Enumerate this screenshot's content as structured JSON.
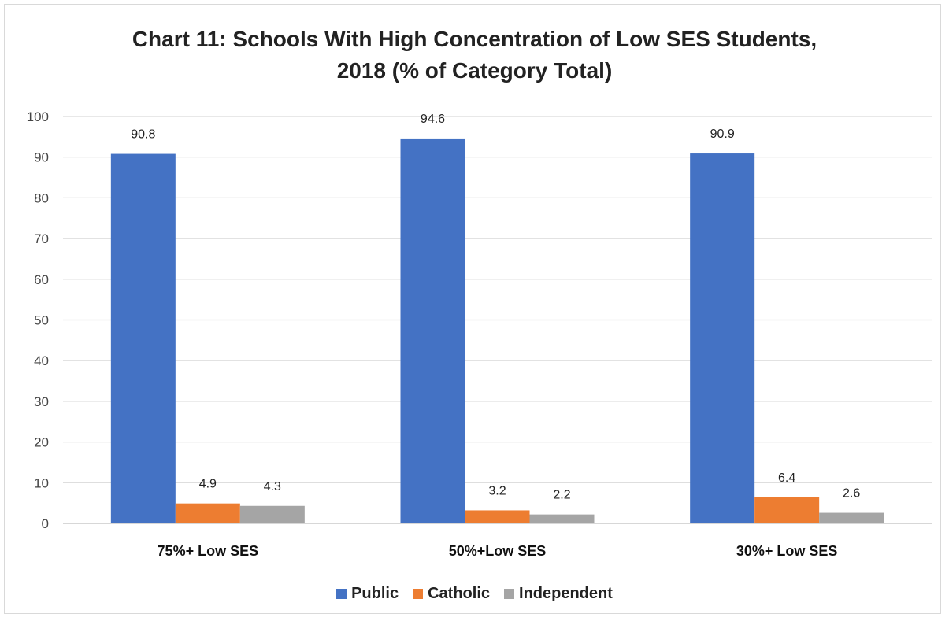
{
  "chart_data": {
    "type": "bar",
    "title_lines": [
      "Chart 11: Schools With High Concentration of Low SES Students,",
      "2018 (% of Category Total)"
    ],
    "categories": [
      "75%+ Low SES",
      "50%+Low SES",
      "30%+ Low SES"
    ],
    "series": [
      {
        "name": "Public",
        "color": "#4472c4",
        "values": [
          90.8,
          94.6,
          90.9
        ]
      },
      {
        "name": "Catholic",
        "color": "#ed7d31",
        "values": [
          4.9,
          3.2,
          6.4
        ]
      },
      {
        "name": "Independent",
        "color": "#a5a5a5",
        "values": [
          4.3,
          2.2,
          2.6
        ]
      }
    ],
    "ylim": [
      0,
      100
    ],
    "yticks": [
      "0",
      "10",
      "20",
      "30",
      "40",
      "50",
      "60",
      "70",
      "80",
      "90",
      "100"
    ],
    "grid": true,
    "legend_position": "bottom"
  }
}
